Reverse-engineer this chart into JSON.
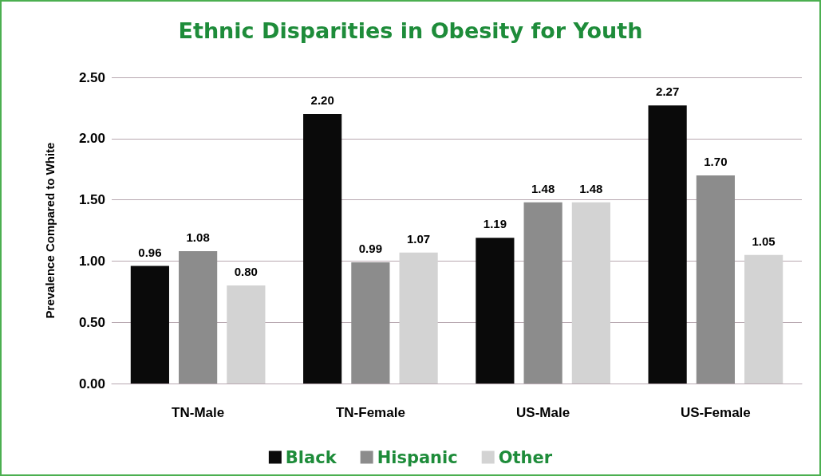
{
  "chart_data": {
    "type": "bar",
    "title": "Ethnic Disparities in Obesity for Youth",
    "ylabel": "Prevalence Compared to White",
    "categories": [
      "TN-Male",
      "TN-Female",
      "US-Male",
      "US-Female"
    ],
    "series": [
      {
        "name": "Black",
        "color": "#0a0a0a",
        "values": [
          0.96,
          2.2,
          1.19,
          2.27
        ],
        "value_labels": [
          "0.96",
          "2.20",
          "1.19",
          "2.27"
        ]
      },
      {
        "name": "Hispanic",
        "color": "#8c8c8c",
        "values": [
          1.08,
          0.99,
          1.48,
          1.7
        ],
        "value_labels": [
          "1.08",
          "0.99",
          "1.48",
          "1.70"
        ]
      },
      {
        "name": "Other",
        "color": "#d3d3d3",
        "values": [
          0.8,
          1.07,
          1.48,
          1.05
        ],
        "value_labels": [
          "0.80",
          "1.07",
          "1.48",
          "1.05"
        ]
      }
    ],
    "ylim": [
      0,
      2.5
    ],
    "yticks": [
      {
        "value": 0,
        "label": "0.00"
      },
      {
        "value": 0.5,
        "label": "0.50"
      },
      {
        "value": 1,
        "label": "1.00"
      },
      {
        "value": 1.5,
        "label": "1.50"
      },
      {
        "value": 2,
        "label": "2.00"
      },
      {
        "value": 2.5,
        "label": "2.50"
      }
    ],
    "grid": "y",
    "legend": "bottom"
  }
}
